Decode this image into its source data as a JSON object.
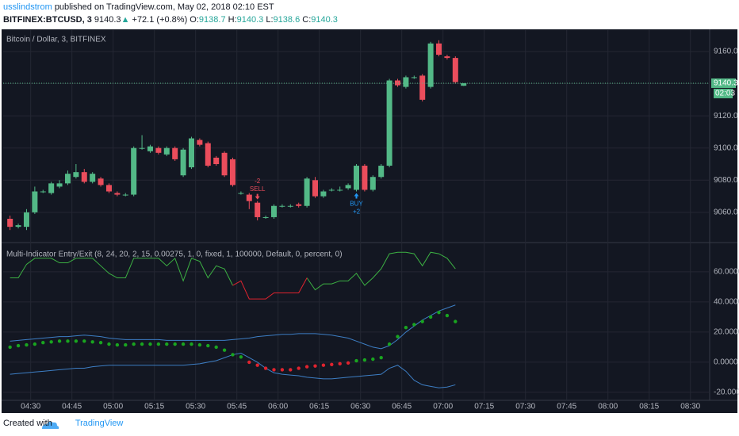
{
  "header": {
    "author": "usslindstrom",
    "published": "published on TradingView.com, May 02, 2018 02:10 EST",
    "symbol": "BITFINEX:BTCUSD, 3",
    "arrow": "▲",
    "change": "+72.1 (+0.8%)",
    "ohlc_labels": [
      "O:",
      "H:",
      "L:",
      "C:"
    ]
  },
  "chart_data": {
    "type": "candlestick",
    "title": "Bitcoin / Dollar, 3, BITFINEX",
    "x": [
      "04:21",
      "04:24",
      "04:27",
      "04:30",
      "04:33",
      "04:36",
      "04:39",
      "04:42",
      "04:45",
      "04:48",
      "04:51",
      "04:54",
      "04:57",
      "05:00",
      "05:03",
      "05:06",
      "05:09",
      "05:12",
      "05:15",
      "05:18",
      "05:21",
      "05:24",
      "05:27",
      "05:30",
      "05:33",
      "05:36",
      "05:39",
      "05:42",
      "05:45",
      "05:48",
      "05:51",
      "05:54",
      "05:57",
      "06:00",
      "06:03",
      "06:06",
      "06:09",
      "06:12",
      "06:15",
      "06:18",
      "06:21",
      "06:24",
      "06:27",
      "06:30",
      "06:33",
      "06:36",
      "06:39",
      "06:42",
      "06:45",
      "06:48",
      "06:51",
      "06:54",
      "06:57",
      "07:00",
      "07:03",
      "07:06"
    ],
    "open": [
      9056,
      9051,
      9051,
      9060,
      9073,
      9072,
      9076,
      9078,
      9082,
      9085,
      9079,
      9081,
      9077,
      9072,
      9071,
      9071,
      9100,
      9098,
      9100,
      9096,
      9100,
      9083,
      9088,
      9105,
      9103,
      9094,
      9097,
      9093,
      9072,
      9071,
      9066,
      9057,
      9057,
      9064,
      9064,
      9065,
      9064,
      9080,
      9070,
      9074,
      9074,
      9075,
      9074,
      9089,
      9074,
      9082,
      9089,
      9142,
      9138,
      9144,
      9145,
      9138,
      9165,
      9157,
      9156,
      9138.7
    ],
    "high": [
      9058,
      9053,
      9062,
      9076,
      9074,
      9079,
      9080,
      9086,
      9090,
      9087,
      9085,
      9082,
      9078,
      9073,
      9072,
      9101,
      9108,
      9102,
      9101,
      9101,
      9101,
      9100,
      9107,
      9106,
      9104,
      9095,
      9098,
      9094,
      9073,
      9072,
      9067,
      9058,
      9065,
      9065,
      9065,
      9066,
      9082,
      9082,
      9074,
      9075,
      9076,
      9078,
      9090,
      9090,
      9083,
      9090,
      9143,
      9143,
      9145,
      9145,
      9146,
      9166,
      9167,
      9158,
      9157,
      9140.3
    ],
    "low": [
      9049,
      9050,
      9049,
      9059,
      9072,
      9071,
      9075,
      9077,
      9081,
      9078,
      9078,
      9076,
      9072,
      9070,
      9070,
      9070,
      9099,
      9097,
      9096,
      9095,
      9092,
      9082,
      9087,
      9101,
      9088,
      9089,
      9082,
      9076,
      9071,
      9062,
      9055,
      9056,
      9056,
      9063,
      9063,
      9063,
      9063,
      9069,
      9069,
      9073,
      9073,
      9074,
      9073,
      9073,
      9073,
      9081,
      9088,
      9138,
      9137,
      9143,
      9129,
      9137,
      9157,
      9155,
      9140,
      9138.6
    ],
    "close": [
      9051,
      9052,
      9060,
      9073,
      9073,
      9078,
      9078,
      9084,
      9085,
      9079,
      9084,
      9077,
      9073,
      9071,
      9071,
      9100,
      9100,
      9101,
      9097,
      9100,
      9093,
      9099,
      9106,
      9102,
      9089,
      9090,
      9083,
      9077,
      9072,
      9067,
      9057,
      9057,
      9064,
      9064,
      9064,
      9064,
      9081,
      9070,
      9073,
      9074,
      9074,
      9077,
      9089,
      9074,
      9082,
      9089,
      9142,
      9139,
      9144,
      9144,
      9130,
      9165,
      9158,
      9156,
      9141,
      9140.3
    ],
    "up_color": "#53b987",
    "down_color": "#eb4d5c",
    "xlim": [
      "04:20",
      "08:37"
    ],
    "xticks": [
      "04:30",
      "04:45",
      "05:00",
      "05:15",
      "05:30",
      "05:45",
      "06:00",
      "06:15",
      "06:30",
      "06:45",
      "07:00",
      "07:15",
      "07:30",
      "07:45",
      "08:00",
      "08:15",
      "08:30"
    ],
    "ylim": [
      9041.7,
      9173.3
    ],
    "yticks": [
      {
        "value": 9060,
        "label": "9060.0"
      },
      {
        "value": 9080,
        "label": "9080.0"
      },
      {
        "value": 9100,
        "label": "9100.0"
      },
      {
        "value": 9120,
        "label": "9120.0"
      },
      {
        "value": 9140,
        "label": "9140.0"
      },
      {
        "value": 9160,
        "label": "9160.0"
      }
    ],
    "countdown": "02:03",
    "signals": [
      {
        "time": "05:51",
        "label": "SELL",
        "qty": "-2",
        "color": "#eb4d5c",
        "position": "above"
      },
      {
        "time": "06:27",
        "label": "BUY",
        "qty": "+2",
        "color": "#2196f3",
        "position": "below"
      }
    ],
    "indicator": {
      "title": "Multi-Indicator Entry/Exit (8, 24, 20, 2, 15, 0.00275, 1, 0, fixed, 1, 100000, Default, 0, percent, 0)",
      "ylim": [
        -25.3,
        78.9
      ],
      "yticks": [
        {
          "value": -20,
          "label": "-20.0000"
        },
        {
          "value": 0,
          "label": "0.0000"
        },
        {
          "value": 20,
          "label": "20.0000"
        },
        {
          "value": 40,
          "label": "40.0000"
        },
        {
          "value": 60,
          "label": "60.0000"
        }
      ],
      "series": [
        {
          "style": "line",
          "color": "#3cb043",
          "values": [
            56,
            56,
            65,
            69,
            69,
            69,
            66,
            66,
            69,
            69,
            69,
            64,
            59,
            56,
            56,
            69,
            69,
            69,
            69,
            64,
            69,
            54,
            69,
            67,
            56,
            64,
            62,
            51,
            null,
            null,
            null,
            null,
            null,
            null,
            null,
            null,
            56,
            48,
            52,
            52,
            54,
            54,
            59,
            51,
            56,
            62,
            72,
            73,
            73,
            72,
            64,
            73,
            72,
            69,
            62,
            null
          ]
        },
        {
          "style": "line",
          "color": "#e0232e",
          "values": [
            null,
            null,
            null,
            null,
            null,
            null,
            null,
            null,
            null,
            null,
            null,
            null,
            null,
            null,
            null,
            null,
            null,
            null,
            null,
            null,
            null,
            null,
            null,
            null,
            null,
            null,
            null,
            51,
            54,
            42,
            42,
            42,
            46,
            46,
            46,
            46,
            56,
            null,
            null,
            null,
            null,
            null,
            null,
            null,
            null,
            null,
            null,
            null,
            null,
            null,
            null,
            null,
            null,
            null,
            null,
            null
          ]
        },
        {
          "style": "line",
          "color": "#3d7ec4",
          "values": [
            14,
            14.5,
            15,
            15.5,
            16,
            16.5,
            17,
            17,
            17.5,
            18,
            17.5,
            17,
            16,
            15.5,
            15,
            15,
            15,
            15,
            15,
            14.5,
            14.5,
            14.5,
            14.5,
            14.5,
            14.5,
            14.5,
            14.5,
            15,
            15.5,
            16,
            17,
            17.5,
            18,
            18.5,
            18.5,
            19,
            19,
            19,
            18.5,
            18,
            17,
            16,
            14,
            12,
            10,
            9,
            11,
            15,
            20,
            24,
            28,
            31,
            34,
            36,
            38,
            null
          ]
        },
        {
          "style": "line",
          "color": "#3d7ec4",
          "values": [
            -8,
            -7.5,
            -7,
            -6.5,
            -6,
            -5.5,
            -5,
            -4.5,
            -4,
            -4,
            -3,
            -2.5,
            -2,
            -2,
            -2,
            -2,
            -2,
            -2,
            -2,
            -2,
            -2,
            -2,
            -1.5,
            -1,
            0,
            1,
            3,
            5,
            6,
            3,
            0,
            -4,
            -7,
            -8,
            -8.5,
            -9,
            -10,
            -10.5,
            -11,
            -11,
            -10.5,
            -10,
            -9.5,
            -9,
            -8.5,
            -8,
            -4,
            -2,
            -6,
            -12,
            -15,
            -16,
            -17,
            -16.5,
            -15,
            null
          ]
        },
        {
          "style": "dots",
          "color": "#19a51f",
          "values": [
            10,
            11,
            11.5,
            12,
            13,
            13.5,
            14,
            14,
            14,
            14,
            13.5,
            13,
            12,
            11.5,
            11.5,
            12,
            12,
            12,
            12,
            12,
            12,
            12,
            12,
            11.5,
            11,
            10,
            8,
            5,
            3.5,
            null,
            null,
            null,
            null,
            null,
            null,
            null,
            null,
            null,
            null,
            null,
            null,
            null,
            1,
            1.5,
            2,
            3,
            12,
            17,
            23,
            25,
            27,
            30,
            33,
            31,
            27,
            null
          ]
        },
        {
          "style": "dots",
          "color": "#e0232e",
          "values": [
            null,
            null,
            null,
            null,
            null,
            null,
            null,
            null,
            null,
            null,
            null,
            null,
            null,
            null,
            null,
            null,
            null,
            null,
            null,
            null,
            null,
            null,
            null,
            null,
            null,
            null,
            null,
            null,
            null,
            0,
            -2,
            -4,
            -5,
            -5,
            -5,
            -4,
            -3,
            -2.5,
            -2,
            -1.5,
            -1,
            -0.5,
            null,
            null,
            null,
            null,
            null,
            null,
            null,
            null,
            null,
            null,
            null,
            null,
            null,
            null
          ]
        }
      ]
    }
  },
  "footer": {
    "created": "Created with",
    "brand": "TradingView"
  }
}
